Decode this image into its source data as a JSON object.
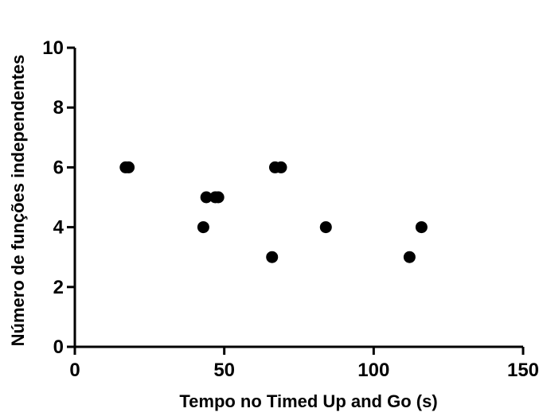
{
  "chart_data": {
    "type": "scatter",
    "title": "",
    "xlabel": "Tempo no Timed Up and Go (s)",
    "ylabel": "Número de funções independentes",
    "xlim": [
      0,
      150
    ],
    "ylim": [
      0,
      10
    ],
    "xticks": [
      0,
      50,
      100,
      150
    ],
    "yticks": [
      0,
      2,
      4,
      6,
      8,
      10
    ],
    "grid": false,
    "legend": "none",
    "marker_color": "#000000",
    "series": [
      {
        "points": [
          {
            "x": 17,
            "y": 6
          },
          {
            "x": 18,
            "y": 6
          },
          {
            "x": 43,
            "y": 4
          },
          {
            "x": 44,
            "y": 5
          },
          {
            "x": 47,
            "y": 5
          },
          {
            "x": 48,
            "y": 5
          },
          {
            "x": 66,
            "y": 3
          },
          {
            "x": 67,
            "y": 6
          },
          {
            "x": 69,
            "y": 6
          },
          {
            "x": 84,
            "y": 4
          },
          {
            "x": 112,
            "y": 3
          },
          {
            "x": 116,
            "y": 4
          }
        ]
      }
    ]
  }
}
